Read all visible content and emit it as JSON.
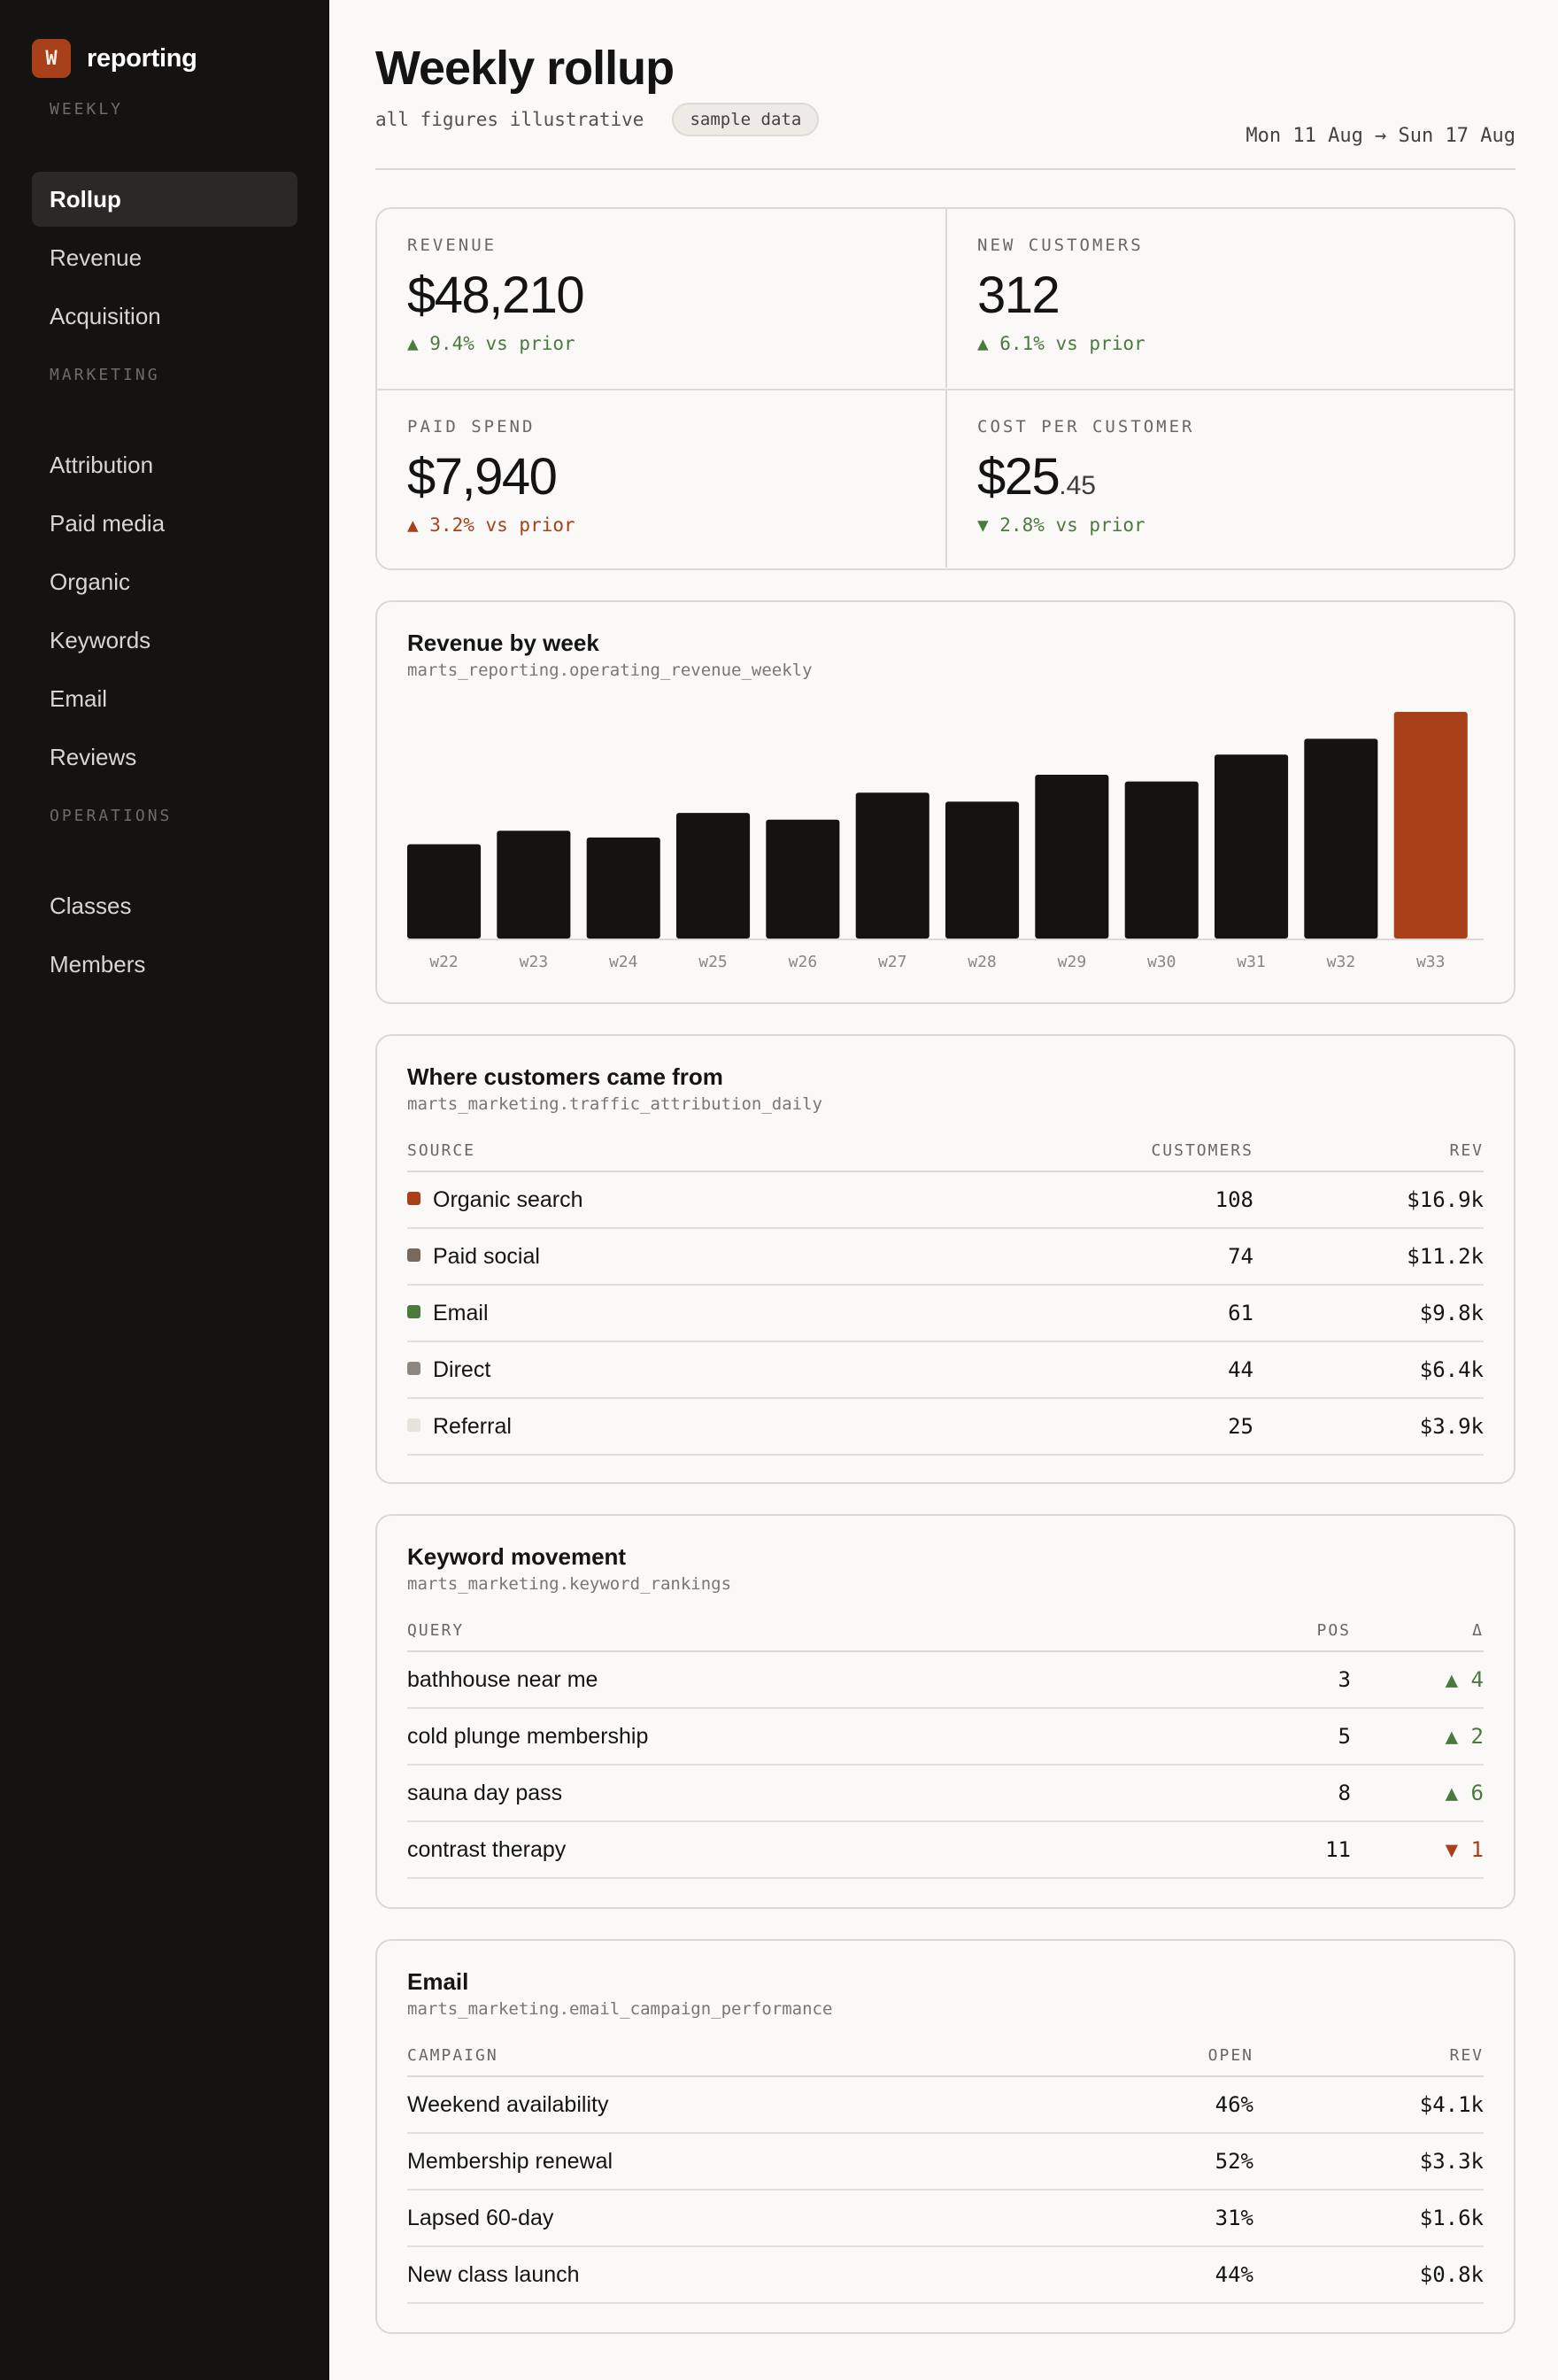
{
  "sidebar": {
    "brand_mark": "W",
    "brand_name": "reporting",
    "sections": [
      {
        "label": "WEEKLY",
        "items": [
          "Rollup",
          "Revenue",
          "Acquisition"
        ]
      },
      {
        "label": "MARKETING",
        "items": [
          "Attribution",
          "Paid media",
          "Organic",
          "Keywords",
          "Email",
          "Reviews"
        ]
      },
      {
        "label": "OPERATIONS",
        "items": [
          "Classes",
          "Members"
        ]
      }
    ],
    "active_item": "Rollup"
  },
  "header": {
    "title": "Weekly rollup",
    "subtitle": "all figures illustrative",
    "badge": "sample data",
    "date_range": "Mon 11 Aug → Sun 17 Aug"
  },
  "kpis": {
    "revenue": {
      "label": "REVENUE",
      "value": "$48,210",
      "delta": "▲ 9.4% vs prior"
    },
    "new_customers": {
      "label": "NEW CUSTOMERS",
      "value": "312",
      "delta": "▲ 6.1% vs prior"
    },
    "paid_spend": {
      "label": "PAID SPEND",
      "value": "$7,940",
      "delta": "▲ 3.2% vs prior"
    },
    "cost_per_customer": {
      "label": "COST PER CUSTOMER",
      "value": "$25",
      "value_cents": ".45",
      "delta": "▼ 2.8% vs prior"
    }
  },
  "revenue_chart": {
    "title": "Revenue by week",
    "source": "marts_reporting.operating_revenue_weekly"
  },
  "chart_data": {
    "type": "bar",
    "title": "Revenue by week",
    "categories": [
      "w22",
      "w23",
      "w24",
      "w25",
      "w26",
      "w27",
      "w28",
      "w29",
      "w30",
      "w31",
      "w32",
      "w33"
    ],
    "values": [
      42,
      48,
      45,
      56,
      53,
      65,
      61,
      73,
      70,
      82,
      89,
      101
    ],
    "highlight_index": 11,
    "bar_color": "#141312",
    "highlight_color": "#a8401a",
    "ylim": [
      0,
      101
    ],
    "grid": false,
    "xlabel": "",
    "ylabel": ""
  },
  "attribution": {
    "title": "Where customers came from",
    "source": "marts_marketing.traffic_attribution_daily",
    "headers": [
      "SOURCE",
      "CUSTOMERS",
      "REV"
    ],
    "rows": [
      {
        "source": "Organic search",
        "customers": "108",
        "rev": "$16.9k",
        "color": "#a8401a"
      },
      {
        "source": "Paid social",
        "customers": "74",
        "rev": "$11.2k",
        "color": "#7a6a5e"
      },
      {
        "source": "Email",
        "customers": "61",
        "rev": "$9.8k",
        "color": "#4a7a3d"
      },
      {
        "source": "Direct",
        "customers": "44",
        "rev": "$6.4k",
        "color": "#8c8780"
      },
      {
        "source": "Referral",
        "customers": "25",
        "rev": "$3.9k",
        "color": "#e6e2dc"
      }
    ]
  },
  "keywords": {
    "title": "Keyword movement",
    "source": "marts_marketing.keyword_rankings",
    "headers": [
      "QUERY",
      "POS",
      "Δ"
    ],
    "rows": [
      {
        "query": "bathhouse near me",
        "pos": "3",
        "delta": "▲ 4",
        "direction": "up"
      },
      {
        "query": "cold plunge membership",
        "pos": "5",
        "delta": "▲ 2",
        "direction": "up"
      },
      {
        "query": "sauna day pass",
        "pos": "8",
        "delta": "▲ 6",
        "direction": "up"
      },
      {
        "query": "contrast therapy",
        "pos": "11",
        "delta": "▼ 1",
        "direction": "down"
      }
    ]
  },
  "email": {
    "title": "Email",
    "source": "marts_marketing.email_campaign_performance",
    "headers": [
      "CAMPAIGN",
      "OPEN",
      "REV"
    ],
    "rows": [
      {
        "campaign": "Weekend availability",
        "open": "46%",
        "rev": "$4.1k"
      },
      {
        "campaign": "Membership renewal",
        "open": "52%",
        "rev": "$3.3k"
      },
      {
        "campaign": "Lapsed 60-day",
        "open": "31%",
        "rev": "$1.6k"
      },
      {
        "campaign": "New class launch",
        "open": "44%",
        "rev": "$0.8k"
      }
    ]
  }
}
